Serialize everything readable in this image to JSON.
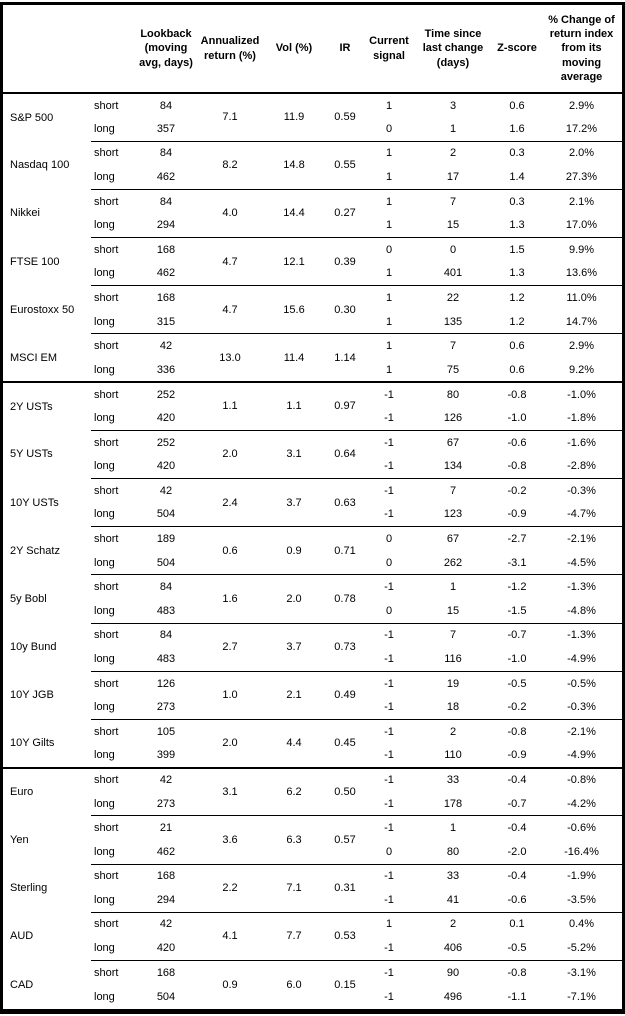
{
  "header": {
    "asset": "",
    "period": "",
    "lookback": "Lookback (moving avg, days)",
    "annualized": "Annualized return (%)",
    "vol": "Vol (%)",
    "ir": "IR",
    "signal": "Current signal",
    "time": "Time since last change (days)",
    "zscore": "Z-score",
    "pct": "% Change of return index from its moving average"
  },
  "groups": [
    {
      "name": "S&P 500",
      "section": "equities",
      "ann_return": "7.1",
      "vol": "11.9",
      "ir": "0.59",
      "rows": [
        {
          "period": "short",
          "lookback": "84",
          "signal": "1",
          "time": "3",
          "zscore": "0.6",
          "pct": "2.9%"
        },
        {
          "period": "long",
          "lookback": "357",
          "signal": "0",
          "time": "1",
          "zscore": "1.6",
          "pct": "17.2%"
        }
      ]
    },
    {
      "name": "Nasdaq 100",
      "section": "equities",
      "ann_return": "8.2",
      "vol": "14.8",
      "ir": "0.55",
      "rows": [
        {
          "period": "short",
          "lookback": "84",
          "signal": "1",
          "time": "2",
          "zscore": "0.3",
          "pct": "2.0%"
        },
        {
          "period": "long",
          "lookback": "462",
          "signal": "1",
          "time": "17",
          "zscore": "1.4",
          "pct": "27.3%"
        }
      ]
    },
    {
      "name": "Nikkei",
      "section": "equities",
      "ann_return": "4.0",
      "vol": "14.4",
      "ir": "0.27",
      "rows": [
        {
          "period": "short",
          "lookback": "84",
          "signal": "1",
          "time": "7",
          "zscore": "0.3",
          "pct": "2.1%"
        },
        {
          "period": "long",
          "lookback": "294",
          "signal": "1",
          "time": "15",
          "zscore": "1.3",
          "pct": "17.0%"
        }
      ]
    },
    {
      "name": "FTSE 100",
      "section": "equities",
      "ann_return": "4.7",
      "vol": "12.1",
      "ir": "0.39",
      "rows": [
        {
          "period": "short",
          "lookback": "168",
          "signal": "0",
          "time": "0",
          "zscore": "1.5",
          "pct": "9.9%"
        },
        {
          "period": "long",
          "lookback": "462",
          "signal": "1",
          "time": "401",
          "zscore": "1.3",
          "pct": "13.6%"
        }
      ]
    },
    {
      "name": "Eurostoxx 50",
      "section": "equities",
      "ann_return": "4.7",
      "vol": "15.6",
      "ir": "0.30",
      "rows": [
        {
          "period": "short",
          "lookback": "168",
          "signal": "1",
          "time": "22",
          "zscore": "1.2",
          "pct": "11.0%"
        },
        {
          "period": "long",
          "lookback": "315",
          "signal": "1",
          "time": "135",
          "zscore": "1.2",
          "pct": "14.7%"
        }
      ]
    },
    {
      "name": "MSCI EM",
      "section": "equities",
      "ann_return": "13.0",
      "vol": "11.4",
      "ir": "1.14",
      "rows": [
        {
          "period": "short",
          "lookback": "42",
          "signal": "1",
          "time": "7",
          "zscore": "0.6",
          "pct": "2.9%"
        },
        {
          "period": "long",
          "lookback": "336",
          "signal": "1",
          "time": "75",
          "zscore": "0.6",
          "pct": "9.2%"
        }
      ]
    },
    {
      "name": "2Y USTs",
      "section": "bonds",
      "ann_return": "1.1",
      "vol": "1.1",
      "ir": "0.97",
      "rows": [
        {
          "period": "short",
          "lookback": "252",
          "signal": "-1",
          "time": "80",
          "zscore": "-0.8",
          "pct": "-1.0%"
        },
        {
          "period": "long",
          "lookback": "420",
          "signal": "-1",
          "time": "126",
          "zscore": "-1.0",
          "pct": "-1.8%"
        }
      ]
    },
    {
      "name": "5Y USTs",
      "section": "bonds",
      "ann_return": "2.0",
      "vol": "3.1",
      "ir": "0.64",
      "rows": [
        {
          "period": "short",
          "lookback": "252",
          "signal": "-1",
          "time": "67",
          "zscore": "-0.6",
          "pct": "-1.6%"
        },
        {
          "period": "long",
          "lookback": "420",
          "signal": "-1",
          "time": "134",
          "zscore": "-0.8",
          "pct": "-2.8%"
        }
      ]
    },
    {
      "name": "10Y USTs",
      "section": "bonds",
      "ann_return": "2.4",
      "vol": "3.7",
      "ir": "0.63",
      "rows": [
        {
          "period": "short",
          "lookback": "42",
          "signal": "-1",
          "time": "7",
          "zscore": "-0.2",
          "pct": "-0.3%"
        },
        {
          "period": "long",
          "lookback": "504",
          "signal": "-1",
          "time": "123",
          "zscore": "-0.9",
          "pct": "-4.7%"
        }
      ]
    },
    {
      "name": "2Y Schatz",
      "section": "bonds",
      "ann_return": "0.6",
      "vol": "0.9",
      "ir": "0.71",
      "rows": [
        {
          "period": "short",
          "lookback": "189",
          "signal": "0",
          "time": "67",
          "zscore": "-2.7",
          "pct": "-2.1%"
        },
        {
          "period": "long",
          "lookback": "504",
          "signal": "0",
          "time": "262",
          "zscore": "-3.1",
          "pct": "-4.5%"
        }
      ]
    },
    {
      "name": "5y Bobl",
      "section": "bonds",
      "ann_return": "1.6",
      "vol": "2.0",
      "ir": "0.78",
      "rows": [
        {
          "period": "short",
          "lookback": "84",
          "signal": "-1",
          "time": "1",
          "zscore": "-1.2",
          "pct": "-1.3%"
        },
        {
          "period": "long",
          "lookback": "483",
          "signal": "0",
          "time": "15",
          "zscore": "-1.5",
          "pct": "-4.8%"
        }
      ]
    },
    {
      "name": "10y Bund",
      "section": "bonds",
      "ann_return": "2.7",
      "vol": "3.7",
      "ir": "0.73",
      "rows": [
        {
          "period": "short",
          "lookback": "84",
          "signal": "-1",
          "time": "7",
          "zscore": "-0.7",
          "pct": "-1.3%"
        },
        {
          "period": "long",
          "lookback": "483",
          "signal": "-1",
          "time": "116",
          "zscore": "-1.0",
          "pct": "-4.9%"
        }
      ]
    },
    {
      "name": "10Y JGB",
      "section": "bonds",
      "ann_return": "1.0",
      "vol": "2.1",
      "ir": "0.49",
      "rows": [
        {
          "period": "short",
          "lookback": "126",
          "signal": "-1",
          "time": "19",
          "zscore": "-0.5",
          "pct": "-0.5%"
        },
        {
          "period": "long",
          "lookback": "273",
          "signal": "-1",
          "time": "18",
          "zscore": "-0.2",
          "pct": "-0.3%"
        }
      ]
    },
    {
      "name": "10Y Gilts",
      "section": "bonds",
      "ann_return": "2.0",
      "vol": "4.4",
      "ir": "0.45",
      "rows": [
        {
          "period": "short",
          "lookback": "105",
          "signal": "-1",
          "time": "2",
          "zscore": "-0.8",
          "pct": "-2.1%"
        },
        {
          "period": "long",
          "lookback": "399",
          "signal": "-1",
          "time": "110",
          "zscore": "-0.9",
          "pct": "-4.9%"
        }
      ]
    },
    {
      "name": "Euro",
      "section": "fx",
      "ann_return": "3.1",
      "vol": "6.2",
      "ir": "0.50",
      "rows": [
        {
          "period": "short",
          "lookback": "42",
          "signal": "-1",
          "time": "33",
          "zscore": "-0.4",
          "pct": "-0.8%"
        },
        {
          "period": "long",
          "lookback": "273",
          "signal": "-1",
          "time": "178",
          "zscore": "-0.7",
          "pct": "-4.2%"
        }
      ]
    },
    {
      "name": "Yen",
      "section": "fx",
      "ann_return": "3.6",
      "vol": "6.3",
      "ir": "0.57",
      "rows": [
        {
          "period": "short",
          "lookback": "21",
          "signal": "-1",
          "time": "1",
          "zscore": "-0.4",
          "pct": "-0.6%"
        },
        {
          "period": "long",
          "lookback": "462",
          "signal": "0",
          "time": "80",
          "zscore": "-2.0",
          "pct": "-16.4%"
        }
      ]
    },
    {
      "name": "Sterling",
      "section": "fx",
      "ann_return": "2.2",
      "vol": "7.1",
      "ir": "0.31",
      "rows": [
        {
          "period": "short",
          "lookback": "168",
          "signal": "-1",
          "time": "33",
          "zscore": "-0.4",
          "pct": "-1.9%"
        },
        {
          "period": "long",
          "lookback": "294",
          "signal": "-1",
          "time": "41",
          "zscore": "-0.6",
          "pct": "-3.5%"
        }
      ]
    },
    {
      "name": "AUD",
      "section": "fx",
      "ann_return": "4.1",
      "vol": "7.7",
      "ir": "0.53",
      "rows": [
        {
          "period": "short",
          "lookback": "42",
          "signal": "1",
          "time": "2",
          "zscore": "0.1",
          "pct": "0.4%"
        },
        {
          "period": "long",
          "lookback": "420",
          "signal": "-1",
          "time": "406",
          "zscore": "-0.5",
          "pct": "-5.2%"
        }
      ]
    },
    {
      "name": "CAD",
      "section": "fx",
      "ann_return": "0.9",
      "vol": "6.0",
      "ir": "0.15",
      "rows": [
        {
          "period": "short",
          "lookback": "168",
          "signal": "-1",
          "time": "90",
          "zscore": "-0.8",
          "pct": "-3.1%"
        },
        {
          "period": "long",
          "lookback": "504",
          "signal": "-1",
          "time": "496",
          "zscore": "-1.1",
          "pct": "-7.1%"
        }
      ]
    }
  ]
}
